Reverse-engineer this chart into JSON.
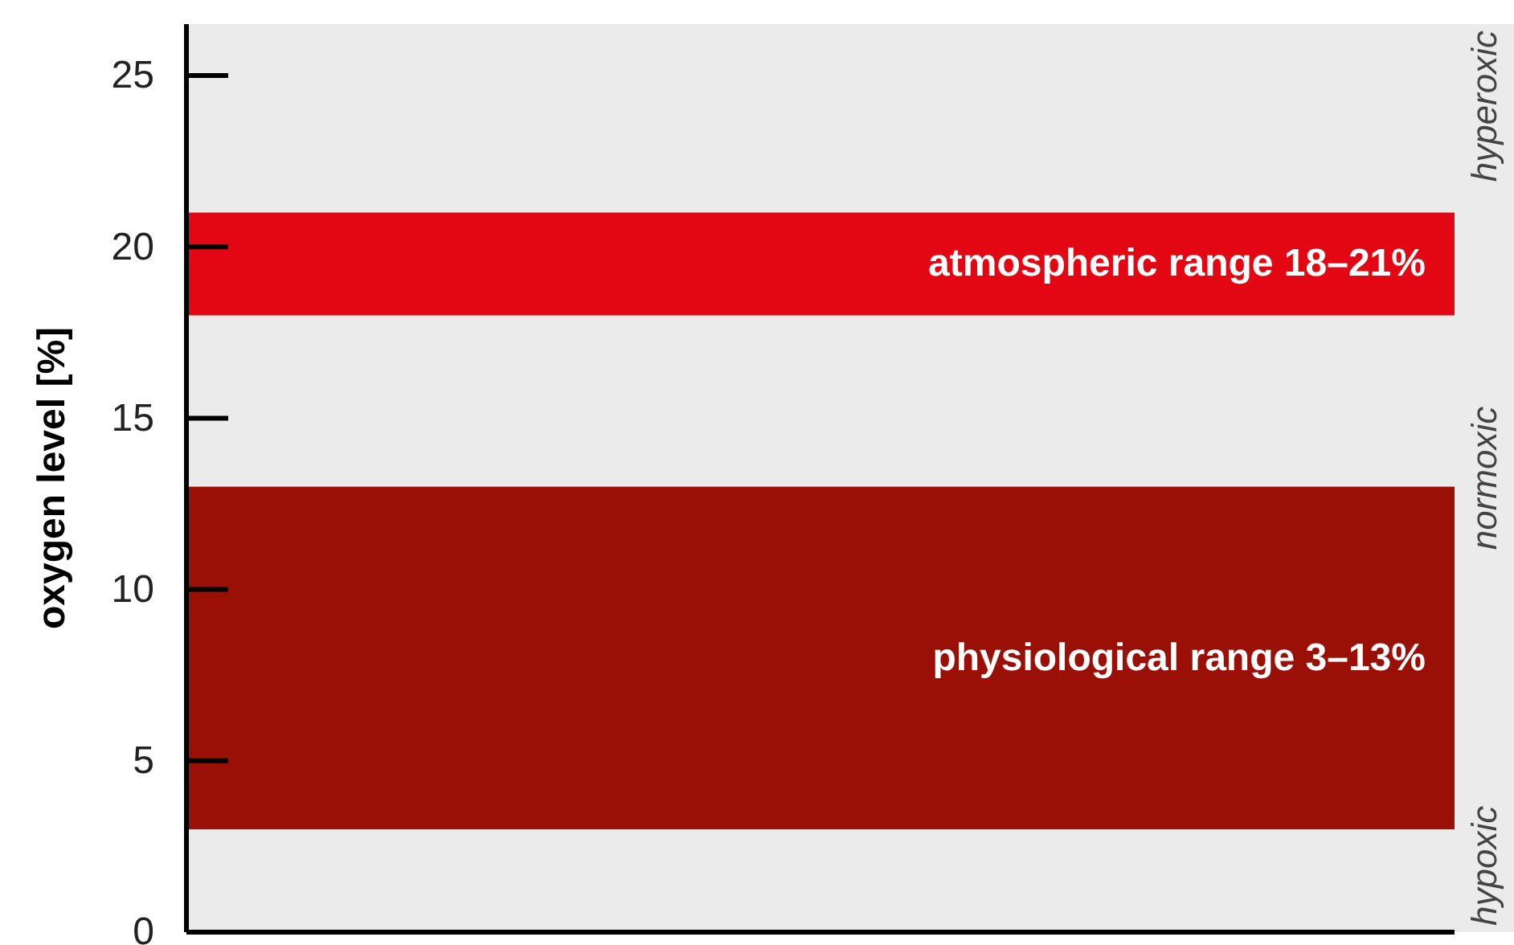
{
  "chart_data": {
    "type": "bar",
    "ylabel": "oxygen level [%]",
    "ylim": [
      0,
      26.5
    ],
    "yticks": [
      0,
      5,
      10,
      15,
      20,
      25
    ],
    "categories": [
      null
    ],
    "series": [
      {
        "name": "atmospheric range 18–21%",
        "color": "#e30613",
        "values": [
          3
        ],
        "base": [
          18
        ]
      },
      {
        "name": "physiological range 3–13%",
        "color": "#9b1006",
        "values": [
          10
        ],
        "base": [
          3
        ]
      }
    ],
    "annotations": [
      "hypoxic",
      "normoxic",
      "hyperoxic"
    ]
  }
}
